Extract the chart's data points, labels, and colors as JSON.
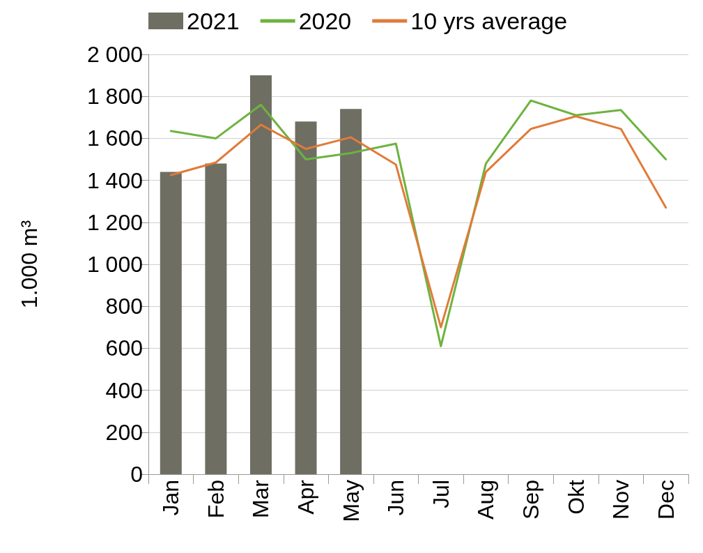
{
  "chart_data": {
    "type": "bar",
    "ylabel": "1.000 m³",
    "categories": [
      "Jan",
      "Feb",
      "Mar",
      "Apr",
      "May",
      "Jun",
      "Jul",
      "Aug",
      "Sep",
      "Okt",
      "Nov",
      "Dec"
    ],
    "series": [
      {
        "name": "2021",
        "color": "#6e6e63",
        "values": [
          1440,
          1480,
          1900,
          1680,
          1740,
          null,
          null,
          null,
          null,
          null,
          null,
          null
        ]
      },
      {
        "name": "2020",
        "type": "line",
        "color": "#6db33f",
        "values": [
          1635,
          1600,
          1760,
          1500,
          1530,
          1575,
          610,
          1480,
          1780,
          1710,
          1735,
          1500
        ]
      },
      {
        "name": "10 yrs average",
        "type": "line",
        "color": "#e07b39",
        "values": [
          1425,
          1485,
          1665,
          1550,
          1605,
          1475,
          700,
          1440,
          1645,
          1705,
          1645,
          1270
        ]
      }
    ],
    "ylim": [
      0,
      2000
    ],
    "yticks": [
      0,
      200,
      400,
      600,
      800,
      {
        "value": 1000,
        "label": "1 000"
      },
      {
        "value": 1200,
        "label": "1 200"
      },
      {
        "value": 1400,
        "label": "1 400"
      },
      {
        "value": 1600,
        "label": "1 600"
      },
      {
        "value": 1800,
        "label": "1 800"
      },
      {
        "value": 2000,
        "label": "2 000"
      }
    ],
    "grid": "y",
    "legend": "top",
    "marker": "none",
    "line_style": "solid"
  }
}
